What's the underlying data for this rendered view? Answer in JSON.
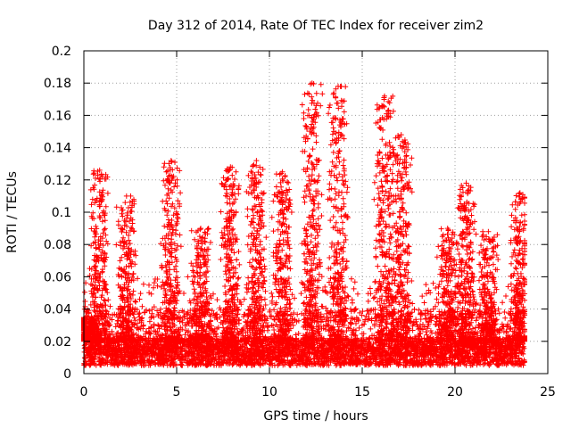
{
  "chart_data": {
    "type": "scatter",
    "title": "Day 312 of 2014, Rate Of TEC Index for receiver zim2",
    "xlabel": "GPS time / hours",
    "ylabel": "ROTI / TECUs",
    "xlim": [
      0,
      25
    ],
    "ylim": [
      0,
      0.2
    ],
    "x_ticks": [
      0,
      5,
      10,
      15,
      20,
      25
    ],
    "x_tick_labels": [
      "0",
      "5",
      "10",
      "15",
      "20",
      "25"
    ],
    "y_ticks": [
      0,
      0.02,
      0.04,
      0.06,
      0.08,
      0.1,
      0.12,
      0.14,
      0.16,
      0.18,
      0.2
    ],
    "y_tick_labels": [
      "0",
      "0.02",
      "0.04",
      "0.06",
      "0.08",
      "0.1",
      "0.12",
      "0.14",
      "0.16",
      "0.18",
      "0.2"
    ],
    "grid": true,
    "marker": "+",
    "color": "#ff0000",
    "x_data_range": [
      0,
      23.75
    ],
    "dense_band": [
      0.005,
      0.05
    ],
    "activity_peaks": [
      {
        "t": 0.2,
        "max": 0.035
      },
      {
        "t": 0.85,
        "max": 0.126
      },
      {
        "t": 2.3,
        "max": 0.11
      },
      {
        "t": 4.7,
        "max": 0.132
      },
      {
        "t": 6.3,
        "max": 0.09
      },
      {
        "t": 7.9,
        "max": 0.128
      },
      {
        "t": 9.3,
        "max": 0.132
      },
      {
        "t": 10.7,
        "max": 0.125
      },
      {
        "t": 12.3,
        "max": 0.18
      },
      {
        "t": 13.7,
        "max": 0.178
      },
      {
        "t": 16.2,
        "max": 0.172
      },
      {
        "t": 17.1,
        "max": 0.148
      },
      {
        "t": 19.6,
        "max": 0.09
      },
      {
        "t": 20.6,
        "max": 0.118
      },
      {
        "t": 21.8,
        "max": 0.088
      },
      {
        "t": 23.5,
        "max": 0.112
      }
    ]
  }
}
